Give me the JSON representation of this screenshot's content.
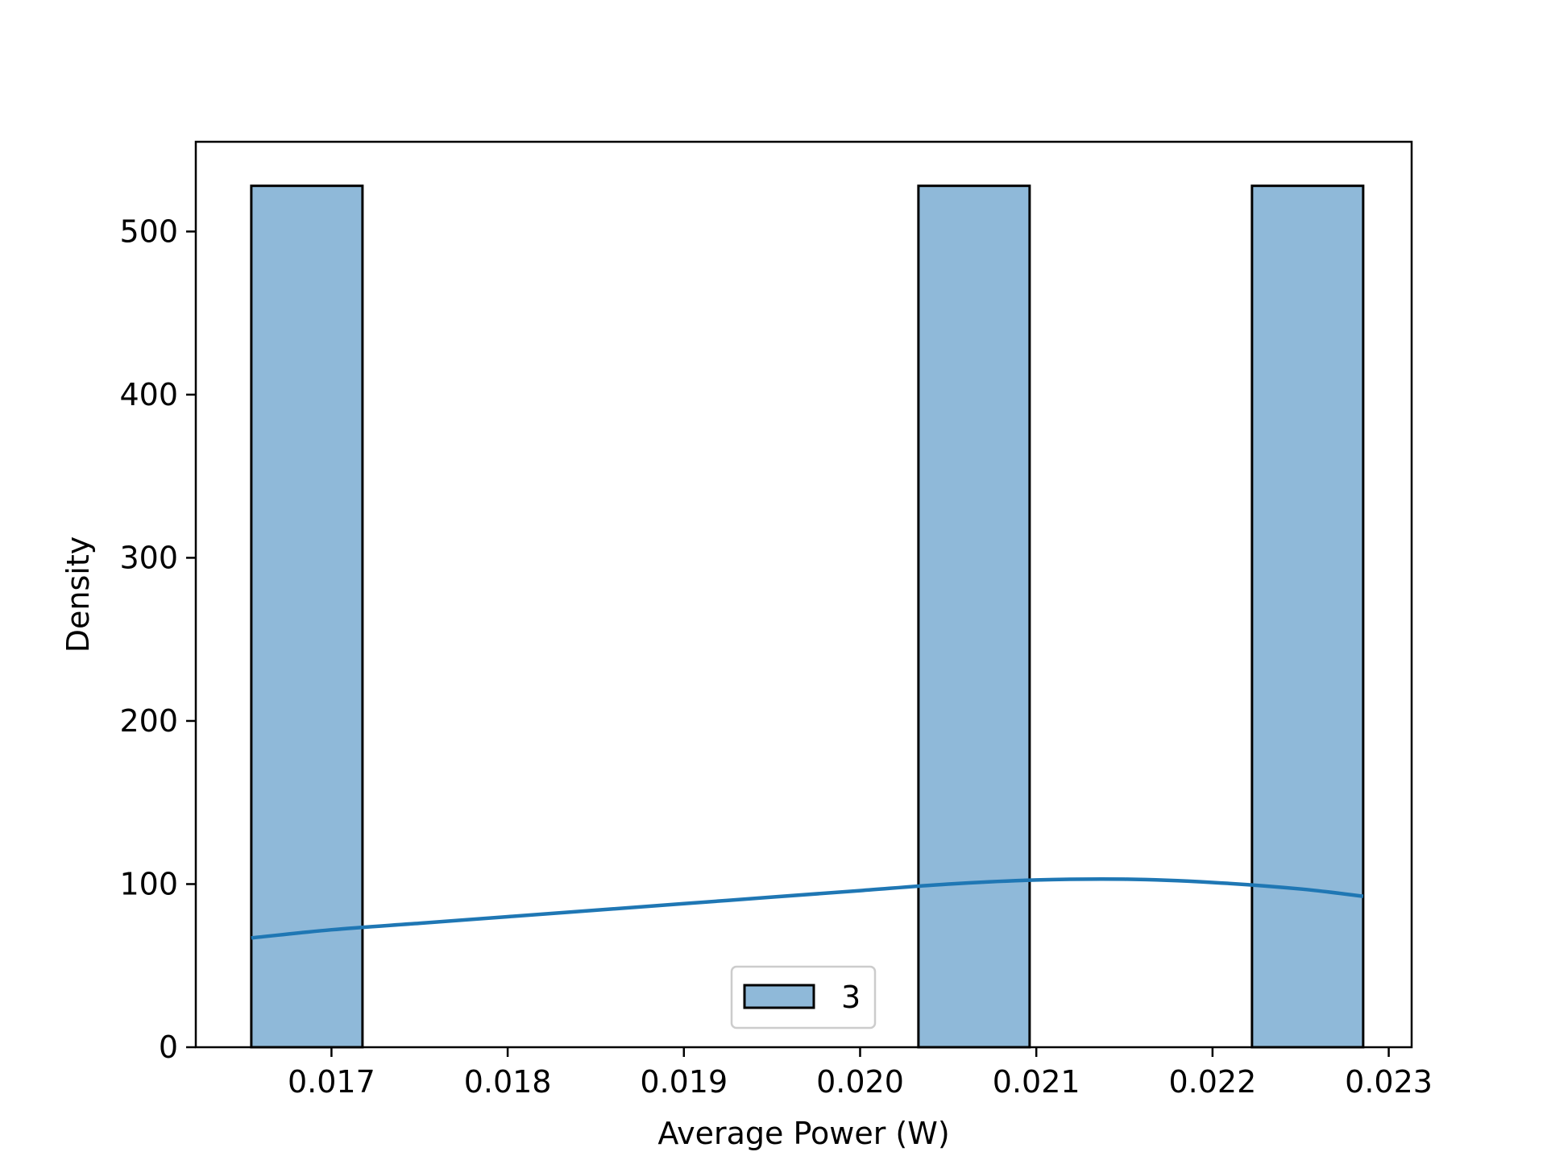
{
  "chart_data": {
    "type": "bar",
    "subtype": "histogram",
    "xlabel": "Average Power (W)",
    "ylabel": "Density",
    "xlim": [
      0.01623,
      0.02313
    ],
    "ylim": [
      0,
      555
    ],
    "x_ticks": [
      0.017,
      0.018,
      0.019,
      0.02,
      0.021,
      0.022,
      0.023
    ],
    "x_tick_labels": [
      "0.017",
      "0.018",
      "0.019",
      "0.020",
      "0.021",
      "0.022",
      "0.023"
    ],
    "y_ticks": [
      0,
      100,
      200,
      300,
      400,
      500
    ],
    "y_tick_labels": [
      "0",
      "100",
      "200",
      "300",
      "400",
      "500"
    ],
    "grid": false,
    "bins": [
      {
        "x0": 0.016545,
        "x1": 0.017176,
        "value": 528
      },
      {
        "x0": 0.020331,
        "x1": 0.020962,
        "value": 528
      },
      {
        "x0": 0.022224,
        "x1": 0.022855,
        "value": 528
      }
    ],
    "kde": {
      "x": [
        0.016545,
        0.017,
        0.0175,
        0.018,
        0.0185,
        0.019,
        0.0195,
        0.02,
        0.0205,
        0.021,
        0.0215,
        0.022,
        0.0225,
        0.022855
      ],
      "y": [
        67,
        72,
        76,
        80,
        84,
        88,
        92,
        96,
        100,
        102.5,
        103,
        101,
        97,
        92.5
      ]
    },
    "legend": {
      "entries": [
        "3"
      ],
      "position": "lower-center"
    },
    "colors": {
      "bar_fill": "#8fb9d9",
      "bar_edge": "#000000",
      "kde_line": "#1f77b4"
    }
  }
}
